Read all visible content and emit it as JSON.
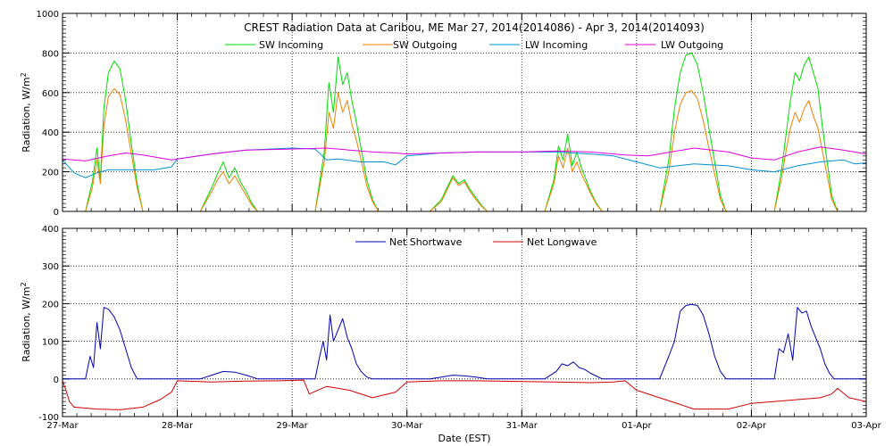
{
  "chart_data": [
    {
      "type": "line",
      "title": "CREST Radiation Data at Caribou, ME   Mar 27, 2014(2014086) - Apr  3, 2014(2014093)",
      "xlabel": "",
      "ylabel": "Radiation, W/m^2",
      "xlim": [
        0,
        7
      ],
      "ylim": [
        0,
        1000
      ],
      "yticks": [
        0,
        200,
        400,
        600,
        800,
        1000
      ],
      "ytick_labels": [
        "0",
        "200",
        "400",
        "600",
        "800",
        "1000"
      ],
      "x_unit": "days since 27-Mar 00:00 EST",
      "legend_location": "top",
      "day_peaks_sw_in": [
        760,
        250,
        780,
        180,
        390,
        800,
        780
      ],
      "day_peaks_sw_out": [
        620,
        200,
        600,
        170,
        320,
        610,
        560
      ],
      "series": [
        {
          "name": "SW Incoming",
          "color": "#00dd00",
          "x": [
            0,
            0.2,
            0.26,
            0.3,
            0.33,
            0.36,
            0.4,
            0.45,
            0.5,
            0.55,
            0.6,
            0.65,
            0.7,
            0.75,
            1.2,
            1.3,
            1.35,
            1.4,
            1.45,
            1.5,
            1.55,
            1.6,
            1.65,
            1.7,
            1.75,
            2.2,
            2.28,
            2.32,
            2.36,
            2.4,
            2.44,
            2.48,
            2.52,
            2.56,
            2.6,
            2.65,
            2.7,
            2.75,
            3.2,
            3.3,
            3.35,
            3.4,
            3.45,
            3.5,
            3.55,
            3.6,
            3.65,
            3.7,
            3.75,
            4.2,
            4.28,
            4.32,
            4.36,
            4.4,
            4.44,
            4.48,
            4.52,
            4.56,
            4.6,
            4.65,
            4.7,
            4.75,
            5.2,
            5.28,
            5.33,
            5.38,
            5.43,
            5.48,
            5.53,
            5.58,
            5.63,
            5.68,
            5.73,
            5.78,
            6.2,
            6.26,
            6.3,
            6.34,
            6.38,
            6.42,
            6.46,
            6.5,
            6.54,
            6.58,
            6.62,
            6.66,
            6.7,
            6.75,
            7.0
          ],
          "y": [
            0,
            0,
            150,
            320,
            160,
            520,
            700,
            760,
            720,
            560,
            340,
            140,
            0,
            0,
            0,
            120,
            190,
            250,
            170,
            220,
            150,
            100,
            40,
            0,
            0,
            0,
            300,
            650,
            500,
            780,
            640,
            700,
            560,
            450,
            320,
            160,
            60,
            0,
            0,
            60,
            120,
            180,
            140,
            160,
            110,
            70,
            30,
            0,
            0,
            0,
            160,
            330,
            260,
            390,
            230,
            300,
            220,
            160,
            100,
            40,
            0,
            0,
            0,
            260,
            520,
            700,
            790,
            800,
            740,
            600,
            420,
            250,
            80,
            0,
            0,
            200,
            380,
            560,
            700,
            660,
            740,
            780,
            700,
            620,
            420,
            250,
            80,
            0,
            0
          ]
        },
        {
          "name": "SW Outgoing",
          "color": "#f08000",
          "x": [
            0,
            0.2,
            0.26,
            0.3,
            0.33,
            0.36,
            0.4,
            0.45,
            0.5,
            0.55,
            0.6,
            0.65,
            0.7,
            0.75,
            1.2,
            1.3,
            1.35,
            1.4,
            1.45,
            1.5,
            1.55,
            1.6,
            1.65,
            1.7,
            1.75,
            2.2,
            2.28,
            2.32,
            2.36,
            2.4,
            2.44,
            2.48,
            2.52,
            2.56,
            2.6,
            2.65,
            2.7,
            2.75,
            3.2,
            3.3,
            3.35,
            3.4,
            3.45,
            3.5,
            3.55,
            3.6,
            3.65,
            3.7,
            3.75,
            4.2,
            4.28,
            4.32,
            4.36,
            4.4,
            4.44,
            4.48,
            4.52,
            4.56,
            4.6,
            4.65,
            4.7,
            4.75,
            5.2,
            5.28,
            5.33,
            5.38,
            5.43,
            5.48,
            5.53,
            5.58,
            5.63,
            5.68,
            5.73,
            5.78,
            6.2,
            6.26,
            6.3,
            6.34,
            6.38,
            6.42,
            6.46,
            6.5,
            6.54,
            6.58,
            6.62,
            6.66,
            6.7,
            6.75,
            7.0
          ],
          "y": [
            0,
            0,
            120,
            260,
            140,
            430,
            580,
            620,
            590,
            460,
            290,
            120,
            0,
            0,
            0,
            100,
            160,
            200,
            140,
            180,
            130,
            80,
            30,
            0,
            0,
            0,
            250,
            500,
            420,
            600,
            500,
            560,
            440,
            360,
            260,
            130,
            50,
            0,
            0,
            50,
            110,
            170,
            130,
            150,
            100,
            60,
            25,
            0,
            0,
            0,
            140,
            280,
            220,
            320,
            200,
            250,
            190,
            140,
            90,
            35,
            0,
            0,
            0,
            200,
            400,
            540,
            600,
            610,
            570,
            460,
            320,
            190,
            60,
            0,
            0,
            160,
            300,
            420,
            500,
            450,
            520,
            560,
            480,
            420,
            300,
            180,
            60,
            0,
            0
          ]
        },
        {
          "name": "LW Incoming",
          "color": "#0090d0",
          "x": [
            0,
            0.1,
            0.2,
            0.3,
            0.4,
            0.6,
            0.8,
            0.95,
            1.0,
            1.3,
            1.6,
            2.0,
            2.2,
            2.3,
            2.4,
            2.6,
            2.8,
            2.9,
            3.0,
            3.3,
            3.6,
            4.0,
            4.3,
            4.6,
            4.8,
            5.0,
            5.2,
            5.5,
            5.8,
            6.0,
            6.2,
            6.4,
            6.6,
            6.8,
            6.9,
            7.0
          ],
          "y": [
            260,
            195,
            170,
            195,
            210,
            210,
            210,
            225,
            265,
            290,
            310,
            320,
            315,
            260,
            265,
            250,
            250,
            235,
            280,
            295,
            300,
            300,
            300,
            290,
            280,
            250,
            220,
            240,
            230,
            210,
            200,
            230,
            250,
            260,
            240,
            245
          ]
        },
        {
          "name": "LW Outgoing",
          "color": "#e000e0",
          "x": [
            0,
            0.2,
            0.4,
            0.55,
            0.7,
            0.95,
            1.0,
            1.3,
            1.6,
            2.0,
            2.3,
            2.5,
            2.7,
            2.9,
            3.0,
            3.3,
            3.6,
            4.0,
            4.3,
            4.6,
            4.9,
            5.1,
            5.3,
            5.5,
            5.8,
            6.0,
            6.2,
            6.4,
            6.6,
            6.8,
            7.0
          ],
          "y": [
            265,
            255,
            280,
            295,
            285,
            260,
            265,
            290,
            310,
            315,
            320,
            310,
            300,
            295,
            290,
            295,
            300,
            300,
            305,
            300,
            285,
            280,
            300,
            320,
            300,
            270,
            260,
            300,
            325,
            310,
            290
          ]
        }
      ]
    },
    {
      "type": "line",
      "title": "",
      "xlabel": "Date (EST)",
      "ylabel": "Radiation, W/m^2",
      "xlim": [
        0,
        7
      ],
      "ylim": [
        -100,
        400
      ],
      "yticks": [
        -100,
        0,
        100,
        200,
        300,
        400
      ],
      "ytick_labels": [
        "-100",
        "0",
        "100",
        "200",
        "300",
        "400"
      ],
      "xticks": [
        0,
        1,
        2,
        3,
        4,
        5,
        6,
        7
      ],
      "xtick_labels": [
        "27-Mar",
        "28-Mar",
        "29-Mar",
        "30-Mar",
        "31-Mar",
        "01-Apr",
        "02-Apr",
        "03-Apr"
      ],
      "legend_location": "top",
      "series": [
        {
          "name": "Net Shortwave",
          "color": "#0000b0",
          "x": [
            0,
            0.2,
            0.24,
            0.27,
            0.3,
            0.33,
            0.36,
            0.4,
            0.45,
            0.5,
            0.55,
            0.6,
            0.65,
            0.7,
            1.2,
            1.3,
            1.4,
            1.5,
            1.6,
            1.7,
            2.2,
            2.24,
            2.27,
            2.3,
            2.33,
            2.36,
            2.4,
            2.44,
            2.48,
            2.52,
            2.56,
            2.6,
            2.65,
            2.7,
            3.2,
            3.3,
            3.4,
            3.5,
            3.6,
            3.7,
            4.2,
            4.3,
            4.35,
            4.4,
            4.45,
            4.5,
            4.55,
            4.6,
            4.7,
            5.2,
            5.28,
            5.33,
            5.38,
            5.43,
            5.48,
            5.53,
            5.58,
            5.63,
            5.68,
            5.73,
            5.78,
            6.2,
            6.24,
            6.28,
            6.32,
            6.36,
            6.4,
            6.44,
            6.48,
            6.52,
            6.56,
            6.6,
            6.64,
            6.68,
            6.72,
            7.0
          ],
          "y": [
            0,
            0,
            60,
            30,
            150,
            80,
            190,
            185,
            165,
            130,
            80,
            30,
            0,
            0,
            0,
            10,
            20,
            18,
            10,
            0,
            0,
            60,
            100,
            50,
            170,
            100,
            130,
            160,
            110,
            80,
            40,
            20,
            5,
            0,
            0,
            5,
            10,
            8,
            5,
            0,
            0,
            20,
            40,
            35,
            45,
            30,
            25,
            15,
            0,
            0,
            60,
            100,
            180,
            195,
            198,
            195,
            170,
            120,
            60,
            20,
            0,
            0,
            80,
            70,
            120,
            50,
            190,
            175,
            180,
            140,
            110,
            80,
            40,
            15,
            0,
            0
          ]
        },
        {
          "name": "Net Longwave",
          "color": "#d00000",
          "x": [
            0,
            0.03,
            0.06,
            0.1,
            0.3,
            0.5,
            0.7,
            0.85,
            0.95,
            1.0,
            1.3,
            1.6,
            1.9,
            2.1,
            2.15,
            2.3,
            2.5,
            2.7,
            2.9,
            3.0,
            3.3,
            3.6,
            4.0,
            4.3,
            4.6,
            4.8,
            4.9,
            5.0,
            5.2,
            5.5,
            5.8,
            6.0,
            6.2,
            6.4,
            6.6,
            6.7,
            6.75,
            6.85,
            7.0
          ],
          "y": [
            -5,
            -30,
            -60,
            -75,
            -80,
            -82,
            -75,
            -55,
            -35,
            -5,
            -8,
            -6,
            -5,
            -3,
            -40,
            -20,
            -30,
            -50,
            -35,
            -8,
            -5,
            -5,
            -7,
            -8,
            -10,
            -8,
            -5,
            -30,
            -50,
            -80,
            -80,
            -65,
            -60,
            -55,
            -50,
            -40,
            -25,
            -50,
            -60
          ]
        }
      ]
    }
  ]
}
